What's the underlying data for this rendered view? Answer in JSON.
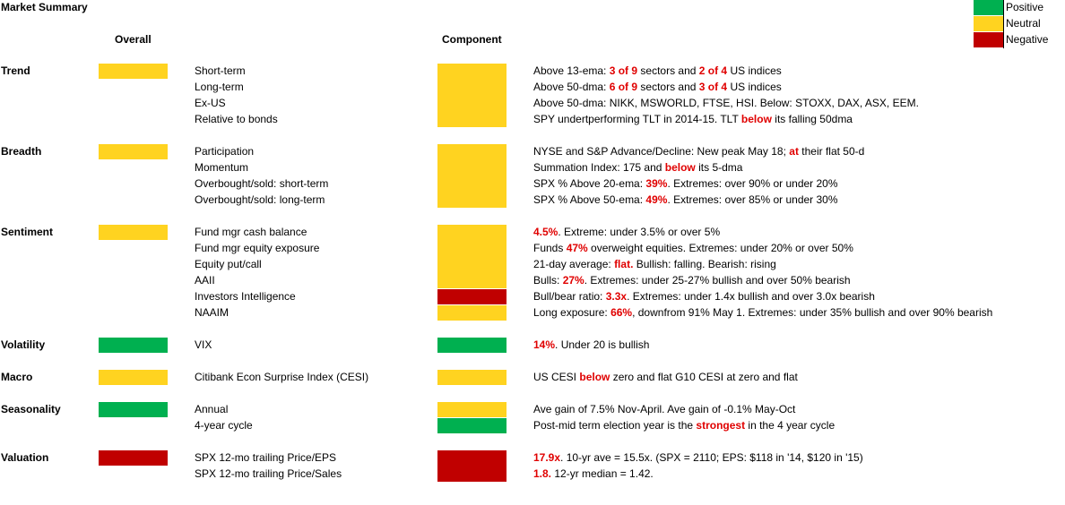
{
  "title": "Market Summary",
  "headers": {
    "overall": "Overall",
    "component": "Component"
  },
  "legend": [
    {
      "label": "Positive",
      "color": "#00b050"
    },
    {
      "label": "Neutral",
      "color": "#ffd320"
    },
    {
      "label": "Negative",
      "color": "#c00000"
    }
  ],
  "colors": {
    "green": "#00b050",
    "yellow": "#ffd320",
    "red": "#c00000",
    "highlight": "#e00000"
  },
  "sections": [
    {
      "name": "Trend",
      "overall": "yellow",
      "rows": [
        {
          "label": "Short-term",
          "component": "yellow",
          "desc": [
            {
              "t": "Above 13-ema: "
            },
            {
              "t": "3 of 9",
              "h": true
            },
            {
              "t": " sectors and "
            },
            {
              "t": "2 of 4",
              "h": true
            },
            {
              "t": " US indices"
            }
          ]
        },
        {
          "label": "Long-term",
          "component": "yellow",
          "desc": [
            {
              "t": "Above 50-dma: "
            },
            {
              "t": "6 of 9",
              "h": true
            },
            {
              "t": " sectors and "
            },
            {
              "t": "3 of 4",
              "h": true
            },
            {
              "t": " US indices"
            }
          ]
        },
        {
          "label": "Ex-US",
          "component": "yellow",
          "desc": [
            {
              "t": "Above 50-dma: NIKK, MSWORLD, FTSE, HSI. Below: STOXX, DAX, ASX, EEM."
            }
          ]
        },
        {
          "label": "Relative to bonds",
          "component": "yellow",
          "desc": [
            {
              "t": "SPY undertperforming TLT in 2014-15. TLT "
            },
            {
              "t": "below",
              "h": true
            },
            {
              "t": " its falling 50dma"
            }
          ]
        }
      ]
    },
    {
      "name": "Breadth",
      "overall": "yellow",
      "rows": [
        {
          "label": "Participation",
          "component": "yellow",
          "desc": [
            {
              "t": "NYSE and S&P Advance/Decline: New peak May 18; "
            },
            {
              "t": "at",
              "h": true
            },
            {
              "t": " their flat 50-d"
            }
          ]
        },
        {
          "label": "Momentum",
          "component": "yellow",
          "desc": [
            {
              "t": "Summation Index: 175 and "
            },
            {
              "t": "below",
              "h": true
            },
            {
              "t": " its 5-dma"
            }
          ]
        },
        {
          "label": "Overbought/sold: short-term",
          "component": "yellow",
          "desc": [
            {
              "t": "SPX % Above 20-ema: "
            },
            {
              "t": "39%",
              "h": true
            },
            {
              "t": ". Extremes: over 90% or under 20%"
            }
          ]
        },
        {
          "label": "Overbought/sold: long-term",
          "component": "yellow",
          "desc": [
            {
              "t": "SPX % Above 50-ema: "
            },
            {
              "t": "49%",
              "h": true
            },
            {
              "t": ". Extremes: over 85% or under 30%"
            }
          ]
        }
      ]
    },
    {
      "name": "Sentiment",
      "overall": "yellow",
      "rows": [
        {
          "label": "Fund mgr cash balance",
          "component": "yellow",
          "desc": [
            {
              "t": "4.5%",
              "h": true
            },
            {
              "t": ". Extreme: under 3.5% or over 5%"
            }
          ]
        },
        {
          "label": "Fund mgr equity exposure",
          "component": "yellow",
          "desc": [
            {
              "t": "Funds "
            },
            {
              "t": "47%",
              "h": true
            },
            {
              "t": " overweight equities. Extremes: under 20% or over 50%"
            }
          ]
        },
        {
          "label": "Equity put/call",
          "component": "yellow",
          "desc": [
            {
              "t": "21-day average: "
            },
            {
              "t": "flat.",
              "h": true
            },
            {
              "t": " Bullish: falling. Bearish: rising"
            }
          ]
        },
        {
          "label": "AAII",
          "component": "yellow",
          "desc": [
            {
              "t": "Bulls: "
            },
            {
              "t": "27%",
              "h": true
            },
            {
              "t": ". Extremes: under 25-27% bullish and over 50% bearish"
            }
          ]
        },
        {
          "label": "Investors Intelligence",
          "component": "red",
          "desc": [
            {
              "t": "Bull/bear ratio: "
            },
            {
              "t": "3.3x",
              "h": true
            },
            {
              "t": ". Extremes: under 1.4x bullish and over 3.0x bearish"
            }
          ]
        },
        {
          "label": "NAAIM",
          "component": "yellow",
          "desc": [
            {
              "t": "Long exposure: "
            },
            {
              "t": "66%",
              "h": true
            },
            {
              "t": ", downfrom 91% May 1. Extremes: under 35% bullish and over 90% bearish"
            }
          ]
        }
      ]
    },
    {
      "name": "Volatility",
      "overall": "green",
      "rows": [
        {
          "label": "VIX",
          "component": "green",
          "desc": [
            {
              "t": "14%",
              "h": true
            },
            {
              "t": ". Under 20 is bullish"
            }
          ]
        }
      ]
    },
    {
      "name": "Macro",
      "overall": "yellow",
      "rows": [
        {
          "label": "Citibank Econ Surprise Index (CESI)",
          "component": "yellow",
          "desc": [
            {
              "t": "US CESI "
            },
            {
              "t": "below",
              "h": true
            },
            {
              "t": " zero and flat  G10 CESI at zero and flat"
            }
          ]
        }
      ]
    },
    {
      "name": "Seasonality",
      "overall": "green",
      "rows": [
        {
          "label": "Annual",
          "component": "yellow",
          "desc": [
            {
              "t": "Ave gain of 7.5% Nov-April. Ave gain of -0.1% May-Oct"
            }
          ]
        },
        {
          "label": "4-year cycle",
          "component": "green",
          "desc": [
            {
              "t": "Post-mid term election year is the "
            },
            {
              "t": "strongest",
              "h": true
            },
            {
              "t": " in the 4 year cycle"
            }
          ]
        }
      ]
    },
    {
      "name": "Valuation",
      "overall": "red",
      "rows": [
        {
          "label": "SPX 12-mo trailing Price/EPS",
          "component": "red",
          "desc": [
            {
              "t": "17.9x",
              "h": true
            },
            {
              "t": ". 10-yr ave = 15.5x.  (SPX = 2110; EPS: $118 in '14, $120 in '15)"
            }
          ]
        },
        {
          "label": "SPX 12-mo trailing Price/Sales",
          "component": "red",
          "desc": [
            {
              "t": "1.8.",
              "h": true
            },
            {
              "t": " 12-yr median = 1.42."
            }
          ]
        }
      ]
    }
  ]
}
